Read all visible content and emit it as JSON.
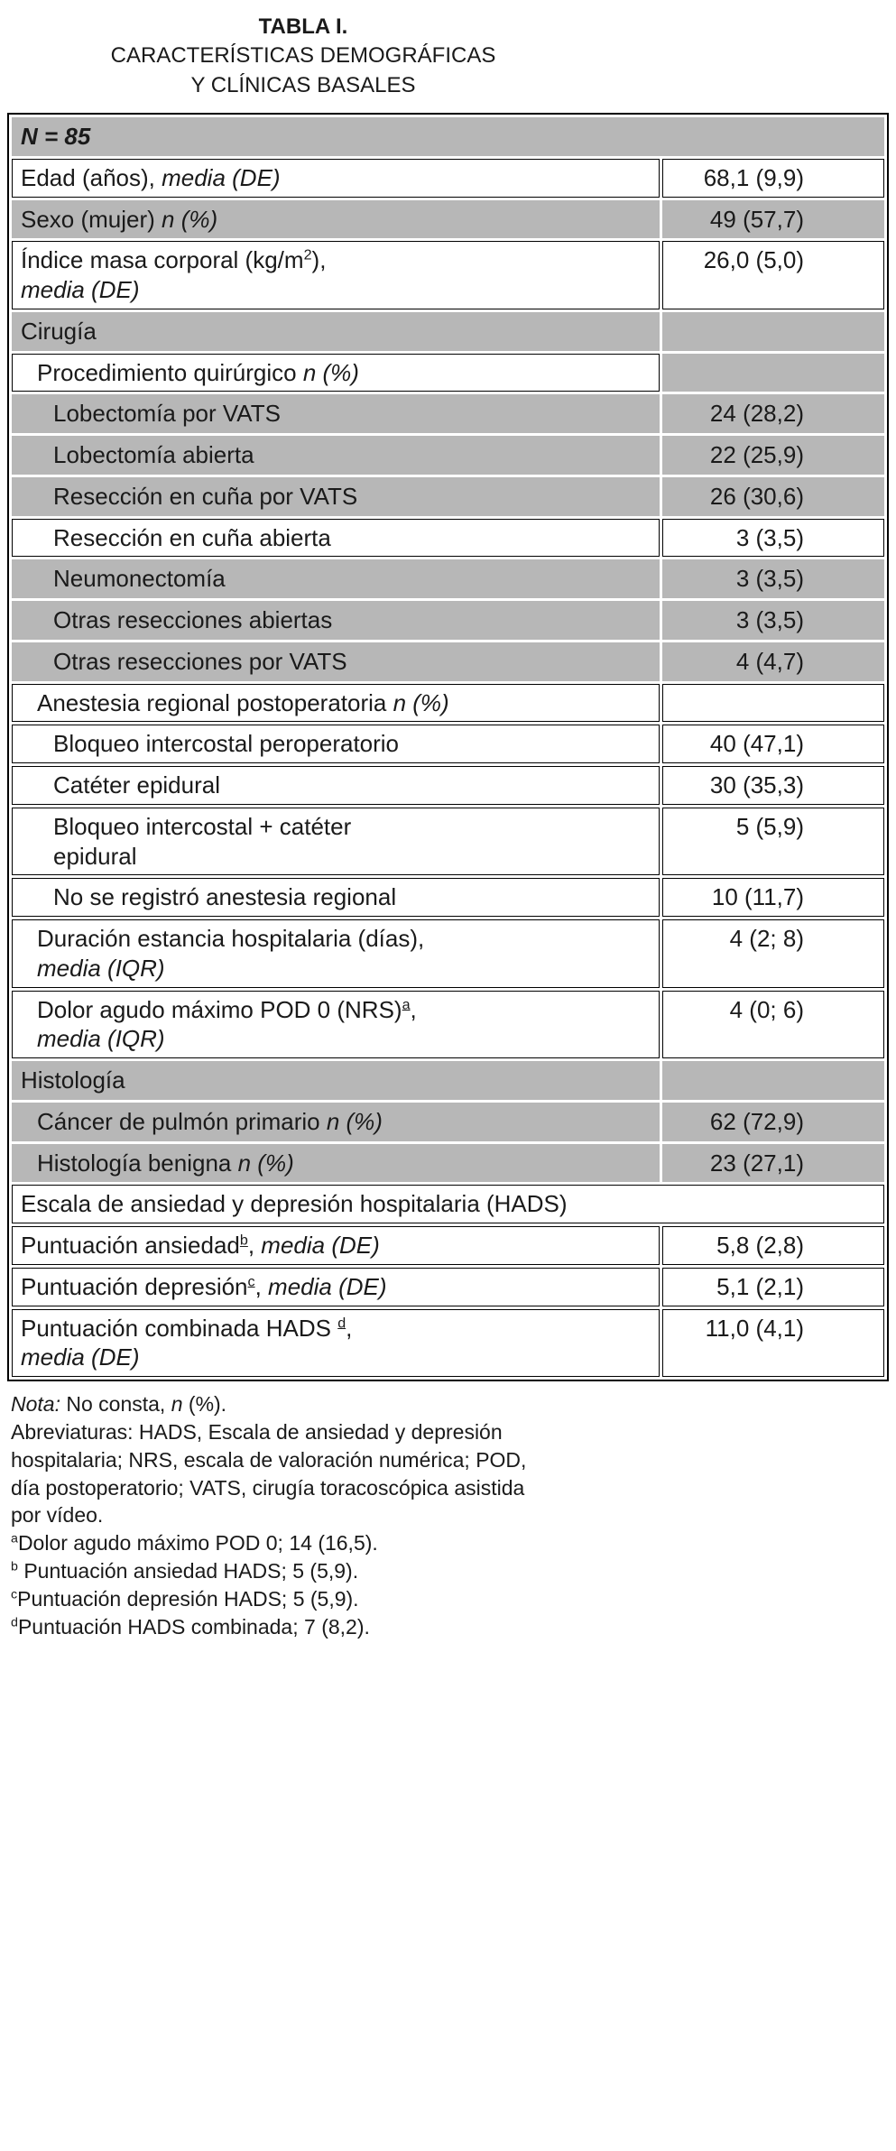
{
  "document": {
    "title_block": {
      "line1": "TABLA I.",
      "line2": "CARACTERÍSTICAS DEMOGRÁFICAS",
      "line3": "Y CLÍNICAS BASALES"
    },
    "colors": {
      "row_gray": "#b7b7b7",
      "border": "#000000",
      "text": "#1a1a1a"
    },
    "table": {
      "rows": [
        {
          "bg": "gray",
          "span": true,
          "indent": 0,
          "label": [
            {
              "t": "N = 85",
              "b": true,
              "i": true
            }
          ],
          "value": ""
        },
        {
          "bg": "white",
          "indent": 0,
          "label": [
            {
              "t": "Edad (años), "
            },
            {
              "t": "media (DE)",
              "i": true
            }
          ],
          "value": "68,1 (9,9)"
        },
        {
          "bg": "gray",
          "indent": 0,
          "label": [
            {
              "t": "Sexo (mujer) "
            },
            {
              "t": "n (%)",
              "i": true
            }
          ],
          "value": "49 (57,7)"
        },
        {
          "bg": "white",
          "indent": 0,
          "label": [
            {
              "t": "Índice masa corporal (kg/m"
            },
            {
              "t": "2",
              "sup": true
            },
            {
              "t": "),"
            },
            {
              "br": true
            },
            {
              "t": "media (DE)",
              "i": true
            }
          ],
          "value": "26,0 (5,0)"
        },
        {
          "bg": "gray",
          "indent": 0,
          "label": [
            {
              "t": "Cirugía"
            }
          ],
          "value": ""
        },
        {
          "bg": "white",
          "value_bg": "gray",
          "indent": 1,
          "label": [
            {
              "t": "Procedimiento quirúrgico "
            },
            {
              "t": "n (%)",
              "i": true
            }
          ],
          "value": ""
        },
        {
          "bg": "gray",
          "indent": 2,
          "label": [
            {
              "t": "Lobectomía por VATS"
            }
          ],
          "value": "24 (28,2)"
        },
        {
          "bg": "gray",
          "indent": 2,
          "label": [
            {
              "t": "Lobectomía abierta"
            }
          ],
          "value": "22 (25,9)"
        },
        {
          "bg": "gray",
          "indent": 2,
          "label": [
            {
              "t": "Resección en cuña por VATS"
            }
          ],
          "value": "26 (30,6)"
        },
        {
          "bg": "white",
          "indent": 2,
          "label": [
            {
              "t": "Resección en cuña abierta"
            }
          ],
          "value": "3 (3,5)"
        },
        {
          "bg": "gray",
          "indent": 2,
          "label": [
            {
              "t": "Neumonectomía"
            }
          ],
          "value": "3 (3,5)"
        },
        {
          "bg": "gray",
          "indent": 2,
          "label": [
            {
              "t": "Otras resecciones abiertas"
            }
          ],
          "value": "3 (3,5)"
        },
        {
          "bg": "gray",
          "indent": 2,
          "label": [
            {
              "t": "Otras resecciones por VATS"
            }
          ],
          "value": "4 (4,7)"
        },
        {
          "bg": "white",
          "indent": 1,
          "label": [
            {
              "t": "Anestesia regional postoperatoria "
            },
            {
              "t": "n (%)",
              "i": true
            }
          ],
          "value": ""
        },
        {
          "bg": "white",
          "indent": 2,
          "label": [
            {
              "t": "Bloqueo intercostal peroperatorio"
            }
          ],
          "value": "40 (47,1)"
        },
        {
          "bg": "white",
          "indent": 2,
          "label": [
            {
              "t": "Catéter epidural"
            }
          ],
          "value": "30 (35,3)"
        },
        {
          "bg": "white",
          "indent": 2,
          "label": [
            {
              "t": "Bloqueo intercostal + catéter"
            },
            {
              "br": true
            },
            {
              "t": "epidural"
            }
          ],
          "value": "5 (5,9)"
        },
        {
          "bg": "white",
          "indent": 2,
          "label": [
            {
              "t": "No se registró anestesia regional"
            }
          ],
          "value": "10 (11,7)"
        },
        {
          "bg": "white",
          "indent": 1,
          "label": [
            {
              "t": "Duración estancia hospitalaria (días),"
            },
            {
              "br": true
            },
            {
              "t": "media (IQR)",
              "i": true
            }
          ],
          "value": "4 (2; 8)"
        },
        {
          "bg": "white",
          "indent": 1,
          "label": [
            {
              "t": "Dolor agudo máximo POD 0 (NRS)"
            },
            {
              "t": "a",
              "sup": true,
              "u": true
            },
            {
              "t": ","
            },
            {
              "br": true
            },
            {
              "t": "media (IQR)",
              "i": true
            }
          ],
          "value": "4 (0; 6)"
        },
        {
          "bg": "gray",
          "indent": 0,
          "label": [
            {
              "t": "Histología"
            }
          ],
          "value": ""
        },
        {
          "bg": "gray",
          "indent": 1,
          "label": [
            {
              "t": "Cáncer de pulmón primario "
            },
            {
              "t": "n (%)",
              "i": true
            }
          ],
          "value": "62 (72,9)"
        },
        {
          "bg": "gray",
          "indent": 1,
          "label": [
            {
              "t": "Histología benigna "
            },
            {
              "t": "n (%)",
              "i": true
            }
          ],
          "value": "23 (27,1)"
        },
        {
          "bg": "white",
          "span": true,
          "indent": 0,
          "label": [
            {
              "t": "Escala de ansiedad y depresión hospitalaria (HADS)"
            }
          ],
          "value": ""
        },
        {
          "bg": "white",
          "indent": 0,
          "label": [
            {
              "t": "Puntuación ansiedad"
            },
            {
              "t": "b",
              "sup": true,
              "u": true
            },
            {
              "t": ", "
            },
            {
              "t": "media (DE)",
              "i": true
            }
          ],
          "value": "5,8 (2,8)"
        },
        {
          "bg": "white",
          "indent": 0,
          "label": [
            {
              "t": "Puntuación depresión"
            },
            {
              "t": "c",
              "sup": true,
              "u": true
            },
            {
              "t": ", "
            },
            {
              "t": "media (DE)",
              "i": true
            }
          ],
          "value": "5,1 (2,1)"
        },
        {
          "bg": "white",
          "indent": 0,
          "label": [
            {
              "t": "Puntuación combinada HADS "
            },
            {
              "t": "d",
              "sup": true,
              "u": true
            },
            {
              "t": ","
            },
            {
              "br": true
            },
            {
              "t": "media (DE)",
              "i": true
            }
          ],
          "value": "11,0 (4,1)"
        }
      ]
    },
    "notes": {
      "lines": [
        [
          {
            "t": "Nota:",
            "i": true
          },
          {
            "t": " No consta, "
          },
          {
            "t": "n",
            "i": true
          },
          {
            "t": " (%)."
          }
        ],
        [
          {
            "t": "Abreviaturas: HADS, Escala de ansiedad y depresión"
          }
        ],
        [
          {
            "t": "hospitalaria; NRS, escala de valoración numérica; POD,"
          }
        ],
        [
          {
            "t": "día postoperatorio; VATS, cirugía toracoscópica asistida"
          }
        ],
        [
          {
            "t": "por vídeo."
          }
        ],
        [
          {
            "t": "a",
            "sup": true
          },
          {
            "t": "Dolor agudo máximo POD 0; 14 (16,5)."
          }
        ],
        [
          {
            "t": "b",
            "sup": true
          },
          {
            "t": " Puntuación ansiedad HADS; 5 (5,9)."
          }
        ],
        [
          {
            "t": "c",
            "sup": true
          },
          {
            "t": "Puntuación depresión HADS; 5 (5,9)."
          }
        ],
        [
          {
            "t": "d",
            "sup": true
          },
          {
            "t": "Puntuación HADS combinada; 7 (8,2)."
          }
        ]
      ]
    }
  }
}
